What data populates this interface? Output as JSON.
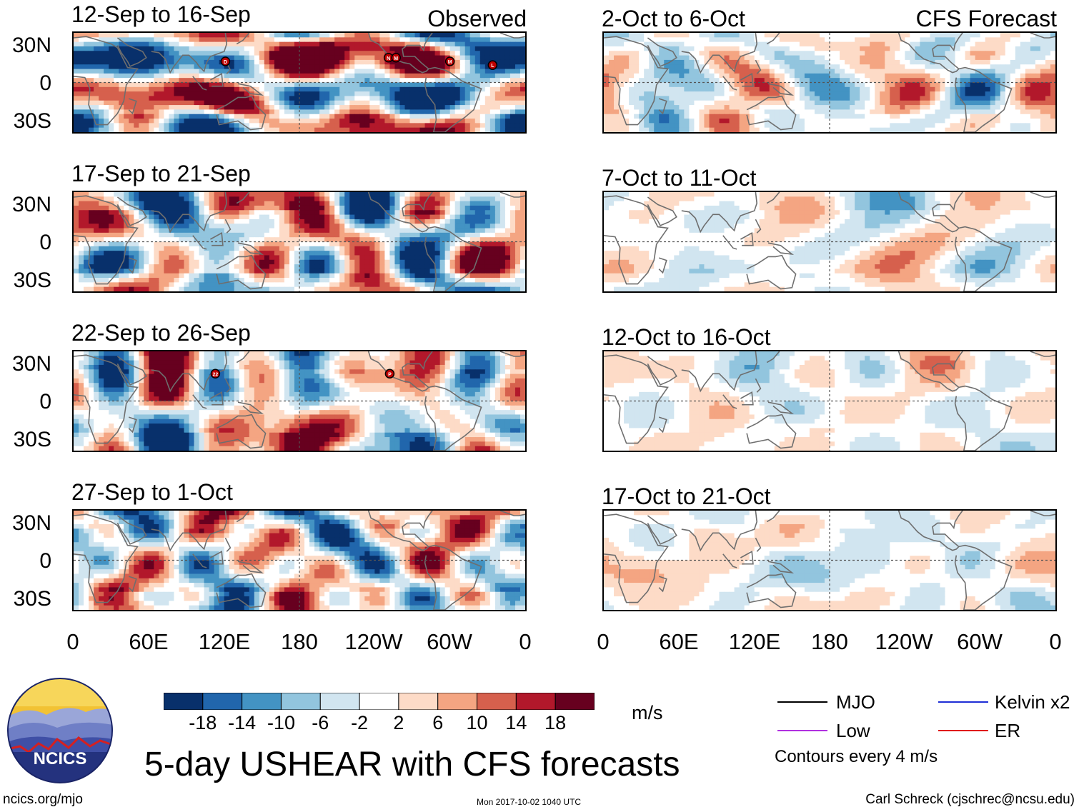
{
  "panel_labels": {
    "left": "Observed",
    "right": "CFS Forecast"
  },
  "chart_data": {
    "type": "heatmap",
    "title": "5-day USHEAR with CFS forecasts",
    "units": "m/s",
    "contour_note": "Contours every 4 m/s",
    "lat_ticks": [
      "30N",
      "0",
      "30S"
    ],
    "lon_ticks": [
      "0",
      "60E",
      "120E",
      "180",
      "120W",
      "60W",
      "0"
    ],
    "colorbar": {
      "tick_labels": [
        "-18",
        "-14",
        "-10",
        "-6",
        "-2",
        "2",
        "6",
        "10",
        "14",
        "18"
      ],
      "colors": [
        "#08306b",
        "#2166ac",
        "#4393c3",
        "#92c5de",
        "#d1e5f0",
        "#ffffff",
        "#fddbc7",
        "#f4a582",
        "#d6604d",
        "#b2182b",
        "#67001f"
      ]
    },
    "panels": [
      {
        "group": "Observed",
        "title": "12-Sep to 16-Sep",
        "storms": [
          "D",
          "N",
          "M",
          "M",
          "L"
        ]
      },
      {
        "group": "Observed",
        "title": "17-Sep to 21-Sep",
        "storms": []
      },
      {
        "group": "Observed",
        "title": "22-Sep to 26-Sep",
        "storms": [
          "22",
          "P"
        ]
      },
      {
        "group": "Observed",
        "title": "27-Sep to 1-Oct",
        "storms": []
      },
      {
        "group": "CFS Forecast",
        "title": "2-Oct to 6-Oct",
        "storms": []
      },
      {
        "group": "CFS Forecast",
        "title": "7-Oct to 11-Oct",
        "storms": []
      },
      {
        "group": "CFS Forecast",
        "title": "12-Oct to 16-Oct",
        "storms": []
      },
      {
        "group": "CFS Forecast",
        "title": "17-Oct to 21-Oct",
        "storms": []
      }
    ],
    "legend": [
      {
        "label": "MJO",
        "color": "#000000"
      },
      {
        "label": "Kelvin x2",
        "color": "#1f2fd6"
      },
      {
        "label": "Low",
        "color": "#b030e0"
      },
      {
        "label": "ER",
        "color": "#e01818"
      }
    ]
  },
  "logo": {
    "text": "NCICS"
  },
  "footer": {
    "url": "ncics.org/mjo",
    "timestamp": "Mon 2017-10-02 1040 UTC",
    "credit": "Carl Schreck (cjschrec@ncsu.edu)"
  }
}
